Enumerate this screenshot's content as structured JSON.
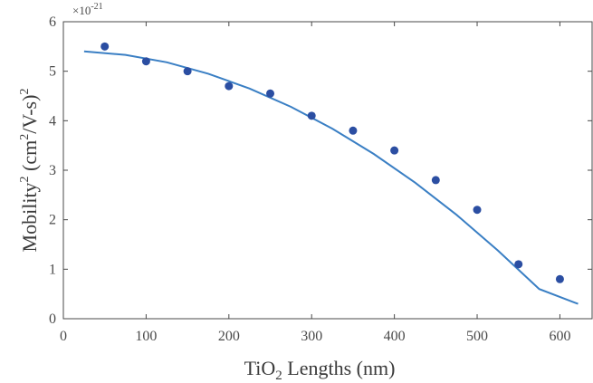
{
  "chart_data": {
    "type": "scatter",
    "xlabel": {
      "pre": "TiO",
      "sub": "2",
      "post": " Lengths (nm)"
    },
    "ylabel": {
      "base": "Mobility",
      "sup1": "2",
      "mid": " (cm",
      "sup2": "2",
      "mid2": "/V-s)",
      "sup3": "2"
    },
    "y_multiplier": {
      "base": "×10",
      "exp": "-21"
    },
    "xlim": [
      0,
      640
    ],
    "ylim": [
      0,
      6
    ],
    "x_ticks": [
      "0",
      "100",
      "200",
      "300",
      "400",
      "500",
      "600"
    ],
    "y_ticks": [
      "0",
      "1",
      "2",
      "3",
      "4",
      "5",
      "6"
    ],
    "grid": false,
    "series": [
      {
        "kind": "points",
        "color": "#2b4ea2",
        "x": [
          50,
          100,
          150,
          200,
          250,
          300,
          350,
          400,
          450,
          500,
          550,
          600
        ],
        "y": [
          5.5,
          5.2,
          5.0,
          4.7,
          4.55,
          4.1,
          3.8,
          3.4,
          2.8,
          2.2,
          1.1,
          0.8
        ]
      },
      {
        "kind": "fit-line",
        "color": "#3a7fc4",
        "x": [
          25,
          75,
          125,
          175,
          225,
          275,
          325,
          375,
          425,
          475,
          525,
          575,
          622
        ],
        "y": [
          5.4,
          5.33,
          5.18,
          4.95,
          4.65,
          4.28,
          3.84,
          3.33,
          2.75,
          2.1,
          1.38,
          0.6,
          0.3
        ]
      }
    ]
  }
}
